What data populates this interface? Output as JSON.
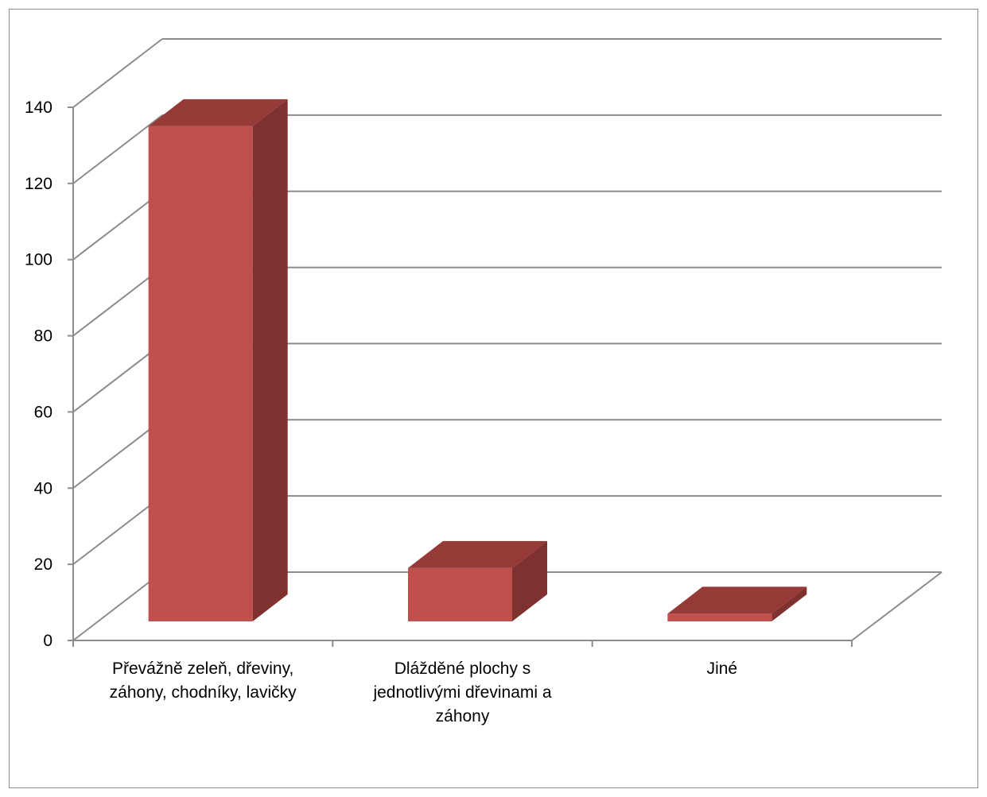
{
  "chart_data": {
    "type": "bar",
    "style": "3d-column",
    "categories": [
      [
        "Převážně zeleň, dřeviny,",
        "záhony, chodníky, lavičky"
      ],
      [
        "Dlážděné plochy s",
        "jednotlivými dřevinami a",
        "záhony"
      ],
      [
        "Jiné"
      ]
    ],
    "series": [
      {
        "values": [
          130,
          14,
          2
        ]
      }
    ],
    "ylim": [
      0,
      140
    ],
    "yticks": [
      "0",
      "20",
      "40",
      "60",
      "80",
      "100",
      "120",
      "140"
    ],
    "grid": true,
    "legend": "none",
    "colors": {
      "bar_front": "#c0504d",
      "bar_side": "#7f3130",
      "bar_top": "#953a37",
      "grid": "#8c8c8c",
      "axis": "#8c8c8c"
    }
  }
}
